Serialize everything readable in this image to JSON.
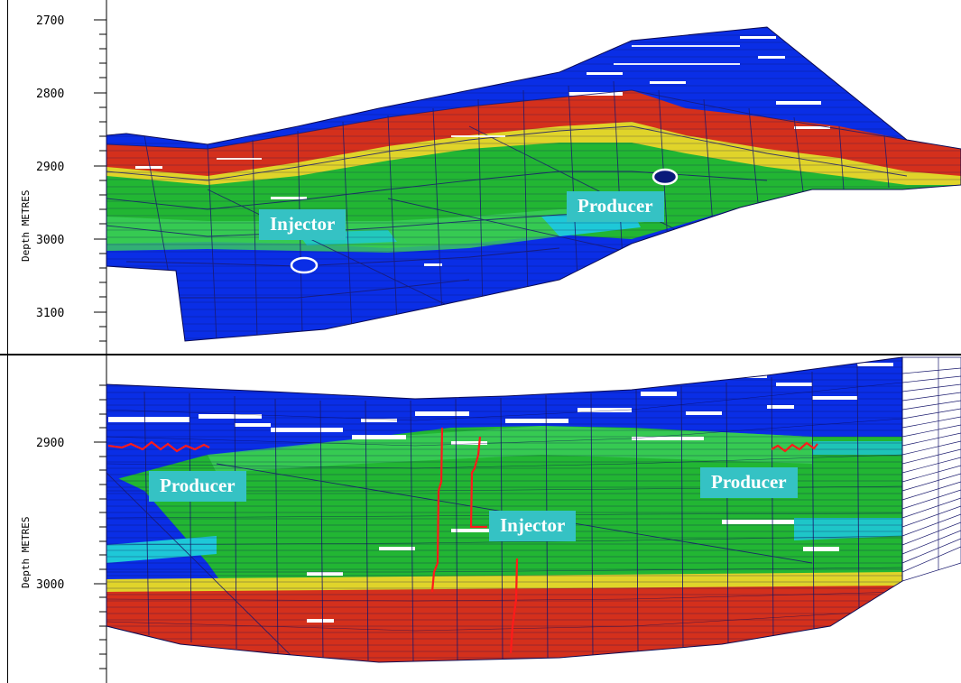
{
  "top_panel": {
    "axis_title": "Depth METRES",
    "tick_labels": [
      "2700",
      "2800",
      "2900",
      "3000",
      "3100"
    ],
    "labels": {
      "injector": "Injector",
      "producer": "Producer"
    }
  },
  "bottom_panel": {
    "axis_title": "Depth METRES",
    "tick_labels": [
      "2900",
      "3000"
    ],
    "labels": {
      "producer_left": "Producer",
      "injector": "Injector",
      "producer_right": "Producer"
    }
  },
  "colors": {
    "water_zone": "#0a2ee6",
    "oil_zone": "#d4301c",
    "transition_zone": "#22b633",
    "cyan_band": "#1ec8d8",
    "yellow_band": "#e0d42a",
    "grid_line": "#1a1a6e",
    "well_trace": "#ff1a1a",
    "label_box": "#35c2c4"
  }
}
